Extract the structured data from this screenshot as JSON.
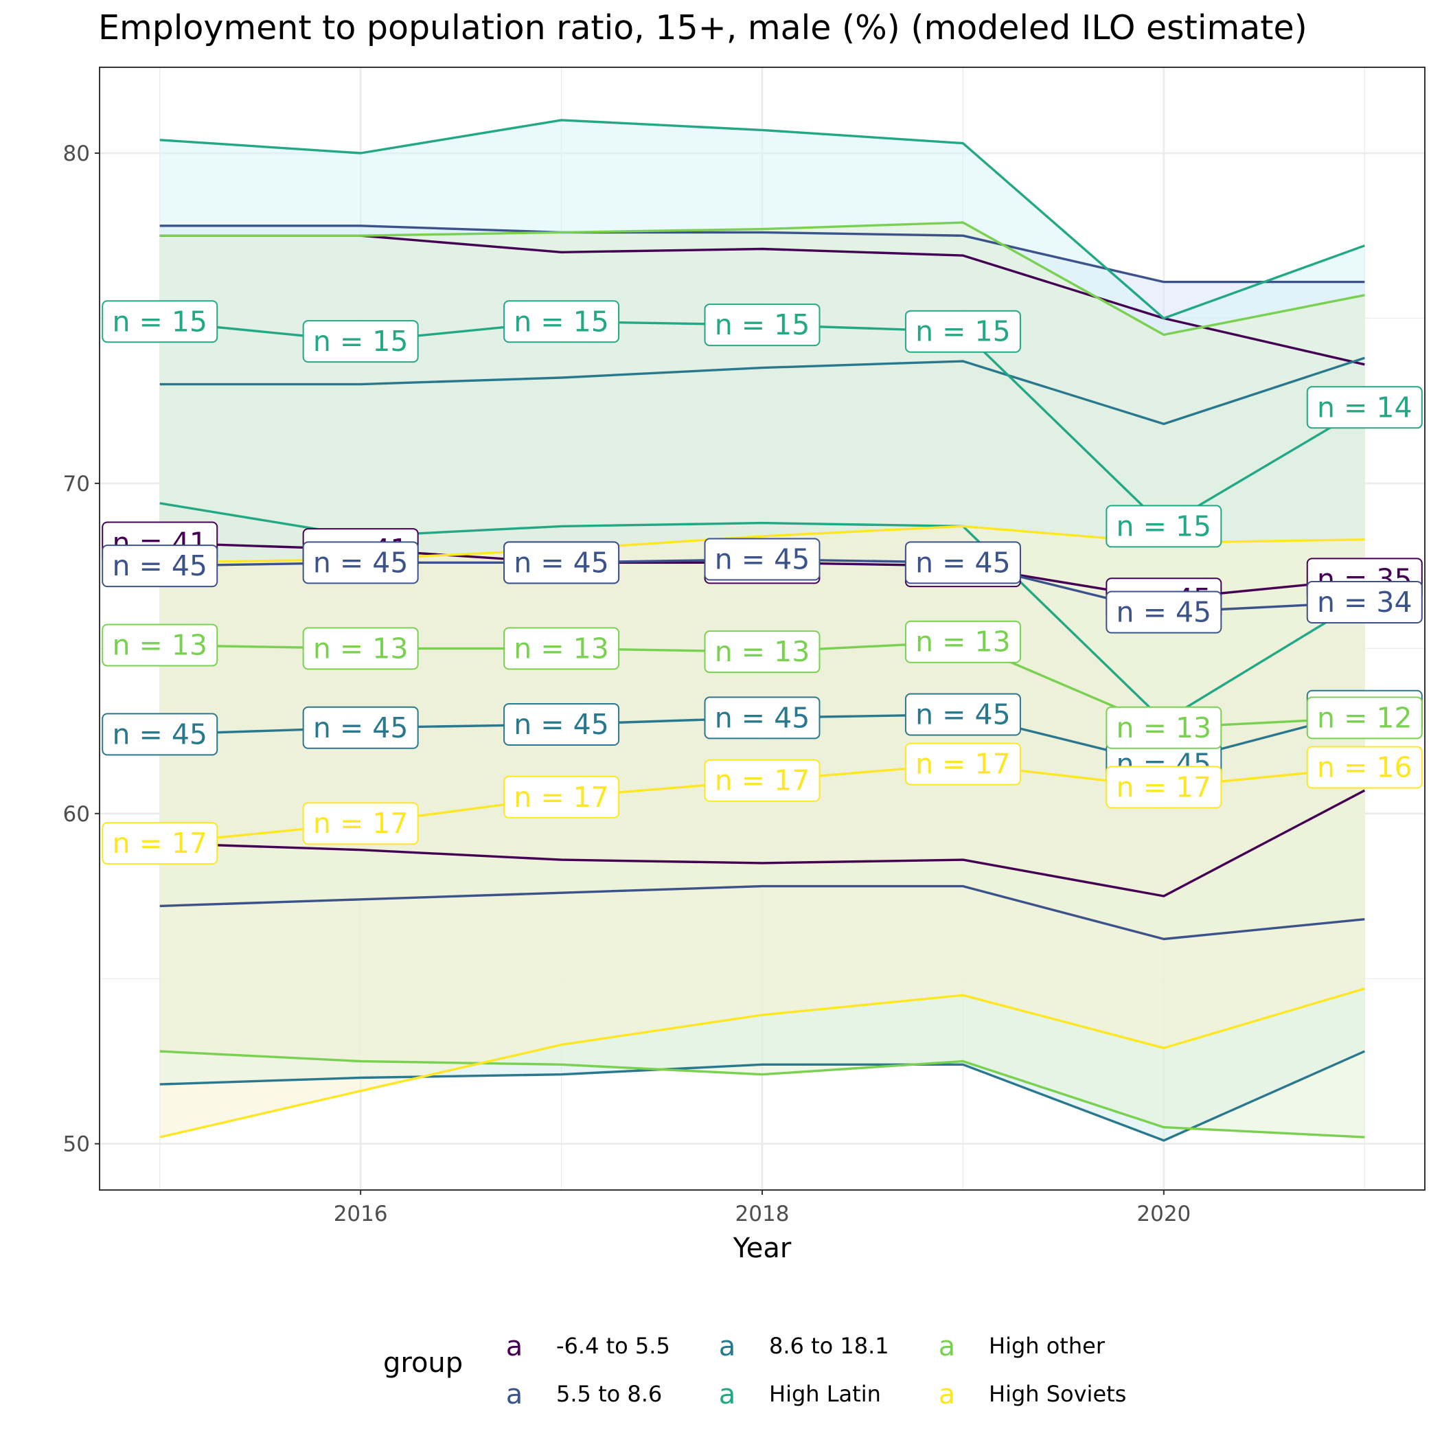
{
  "chart_data": {
    "type": "line",
    "title": "Employment to population ratio, 15+, male (%) (modeled ILO estimate)",
    "xlabel": "Year",
    "ylabel": "",
    "xlim": [
      2014.7,
      2021.3
    ],
    "ylim": [
      48.6,
      82.6
    ],
    "x_ticks": [
      2016,
      2018,
      2020
    ],
    "y_ticks": [
      50,
      60,
      70,
      80
    ],
    "grid": true,
    "legend": {
      "title": "group",
      "position": "bottom",
      "key_glyph": "a"
    },
    "x": [
      2015,
      2016,
      2017,
      2018,
      2019,
      2020,
      2021
    ],
    "series": [
      {
        "name": "-6.4 to 5.5",
        "color": "#440154",
        "mean": [
          68.2,
          68.0,
          67.6,
          67.6,
          67.5,
          66.5,
          67.1
        ],
        "upper": [
          77.5,
          77.5,
          77.0,
          77.1,
          76.9,
          75.0,
          73.6
        ],
        "lower": [
          59.1,
          58.9,
          58.6,
          58.5,
          58.6,
          57.5,
          60.7
        ],
        "n": [
          41,
          41,
          45,
          45,
          45,
          45,
          35
        ],
        "fill": "#f3d6f5"
      },
      {
        "name": "5.5 to 8.6",
        "color": "#3b528b",
        "mean": [
          67.5,
          67.6,
          67.6,
          67.7,
          67.6,
          66.1,
          66.4
        ],
        "upper": [
          77.8,
          77.8,
          77.6,
          77.6,
          77.5,
          76.1,
          76.1
        ],
        "lower": [
          57.2,
          57.4,
          57.6,
          57.8,
          57.8,
          56.2,
          56.8
        ],
        "n": [
          45,
          45,
          45,
          45,
          45,
          45,
          34
        ],
        "fill": "#dbe6f7"
      },
      {
        "name": "8.6 to 18.1",
        "color": "#21908c",
        "mean": [
          62.4,
          62.6,
          62.7,
          62.9,
          63.0,
          61.5,
          63.1
        ],
        "upper": [
          73.0,
          73.0,
          73.2,
          73.5,
          73.7,
          71.8,
          73.8
        ],
        "lower": [
          51.8,
          52.0,
          52.1,
          52.4,
          52.4,
          50.1,
          52.8
        ],
        "n": [
          45,
          45,
          45,
          45,
          45,
          45,
          45
        ],
        "fill": "#d3ecec",
        "line_color": "#2a788e"
      },
      {
        "name": "High Latin",
        "color": "#22a884",
        "mean": [
          74.9,
          74.3,
          74.9,
          74.8,
          74.6,
          68.7,
          72.3
        ],
        "upper": [
          80.4,
          80.0,
          81.0,
          80.7,
          80.3,
          75.0,
          77.2
        ],
        "lower": [
          69.4,
          68.4,
          68.7,
          68.8,
          68.7,
          62.8,
          66.5
        ],
        "n": [
          15,
          15,
          15,
          15,
          15,
          15,
          14
        ],
        "fill": "#d8f4f7"
      },
      {
        "name": "High other",
        "color": "#7ad151",
        "mean": [
          65.1,
          65.0,
          65.0,
          64.9,
          65.2,
          62.6,
          62.9
        ],
        "upper": [
          77.5,
          77.5,
          77.6,
          77.7,
          77.9,
          74.5,
          75.7
        ],
        "lower": [
          52.8,
          52.5,
          52.4,
          52.1,
          52.5,
          50.5,
          50.2
        ],
        "n": [
          13,
          13,
          13,
          13,
          13,
          13,
          12
        ],
        "fill": "#e4f2d6"
      },
      {
        "name": "High Soviets",
        "color": "#fde725",
        "mean": [
          59.1,
          59.7,
          60.5,
          61.0,
          61.5,
          60.8,
          61.4
        ],
        "upper": [
          67.6,
          67.7,
          68.0,
          68.4,
          68.7,
          68.2,
          68.3
        ],
        "lower": [
          50.2,
          51.6,
          53.0,
          53.9,
          54.5,
          52.9,
          54.7
        ],
        "n": [
          17,
          17,
          17,
          17,
          17,
          17,
          16
        ],
        "fill": "#f7f3d4"
      }
    ]
  }
}
